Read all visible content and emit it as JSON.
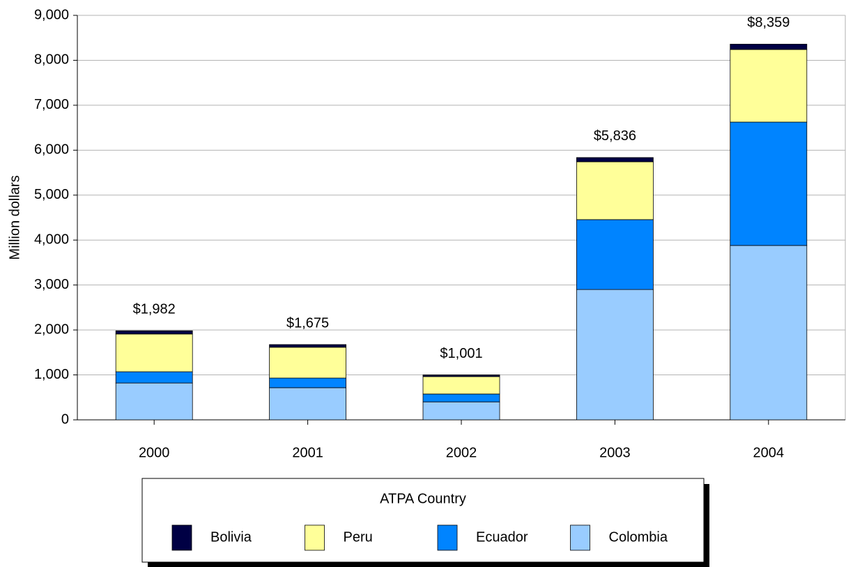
{
  "chart_data": {
    "type": "stacked_bar",
    "y_label": "Million dollars",
    "categories": [
      "2000",
      "2001",
      "2002",
      "2003",
      "2004"
    ],
    "series": [
      {
        "name": "Colombia",
        "color": "#99ccff",
        "values": [
          820,
          715,
          400,
          2900,
          3880
        ]
      },
      {
        "name": "Ecuador",
        "color": "#0084ff",
        "values": [
          250,
          215,
          175,
          1555,
          2745
        ]
      },
      {
        "name": "Peru",
        "color": "#ffff99",
        "values": [
          840,
          685,
          387,
          1287,
          1615
        ]
      },
      {
        "name": "Bolivia",
        "color": "#000044",
        "values": [
          72,
          60,
          39,
          94,
          119
        ]
      }
    ],
    "totals": [
      1982,
      1675,
      1001,
      5836,
      8359
    ],
    "total_labels": [
      "$1,982",
      "$1,675",
      "$1,001",
      "$5,836",
      "$8,359"
    ],
    "legend_title": "ATPA Country",
    "ylim": [
      0,
      9000
    ],
    "yticks": [
      0,
      {
        "value": 1000,
        "label": "1,000"
      },
      {
        "value": 2000,
        "label": "2,000"
      },
      {
        "value": 3000,
        "label": "3,000"
      },
      {
        "value": 4000,
        "label": "4,000"
      },
      {
        "value": 5000,
        "label": "5,000"
      },
      {
        "value": 6000,
        "label": "6,000"
      },
      {
        "value": 7000,
        "label": "7,000"
      },
      {
        "value": 8000,
        "label": "8,000"
      },
      {
        "value": 9000,
        "label": "9,000"
      }
    ],
    "grid": true
  }
}
